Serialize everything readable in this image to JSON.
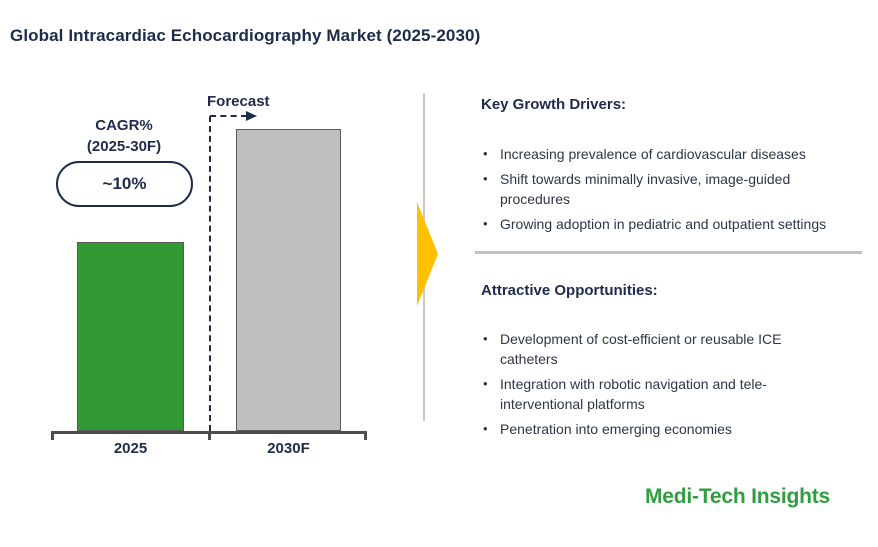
{
  "title": "Global Intracardiac Echocardiography Market (2025-2030)",
  "chart": {
    "forecast_label": "Forecast",
    "cagr_line1": "CAGR%",
    "cagr_line2": "(2025-30F)",
    "cagr_value": "~10%"
  },
  "chart_data": {
    "type": "bar",
    "title": "Global Intracardiac Echocardiography Market (2025-2030)",
    "categories": [
      "2025",
      "2030F"
    ],
    "values": [
      100,
      160
    ],
    "value_note": "no numeric axis shown; relative index with 2025=100, 2030F read as ~1.6x (consistent with ~10% CAGR)",
    "cagr_2025_30F": "~10%",
    "forecast_annotation": "Forecast",
    "bar_colors": [
      "#339933",
      "#bfbfbf"
    ],
    "grid": false,
    "legend": false,
    "xlabel": "",
    "ylabel": ""
  },
  "panels": {
    "growth_drivers": {
      "heading": "Key Growth Drivers:",
      "bullets": [
        "Increasing prevalence of cardiovascular diseases",
        "Shift towards minimally invasive, image-guided procedures",
        "Growing adoption in pediatric and outpatient settings"
      ]
    },
    "opportunities": {
      "heading": "Attractive Opportunities:",
      "bullets": [
        "Development of cost-efficient or reusable ICE catheters",
        "Integration with robotic navigation and tele-interventional platforms",
        "Penetration into emerging economies"
      ]
    }
  },
  "logo": {
    "text": "Medi-Tech Insights"
  },
  "colors": {
    "heading_navy": "#1f2b4c",
    "body_text": "#2e3547",
    "bar_2025_green": "#339933",
    "bar_2030f_gray": "#bfbfbf",
    "bar_border": "#595959",
    "axis": "#4d4d4d",
    "divider_gray": "#c9c9c9",
    "accent_arrow_yellow": "#ffc000",
    "logo_green": "#2f9e41"
  }
}
